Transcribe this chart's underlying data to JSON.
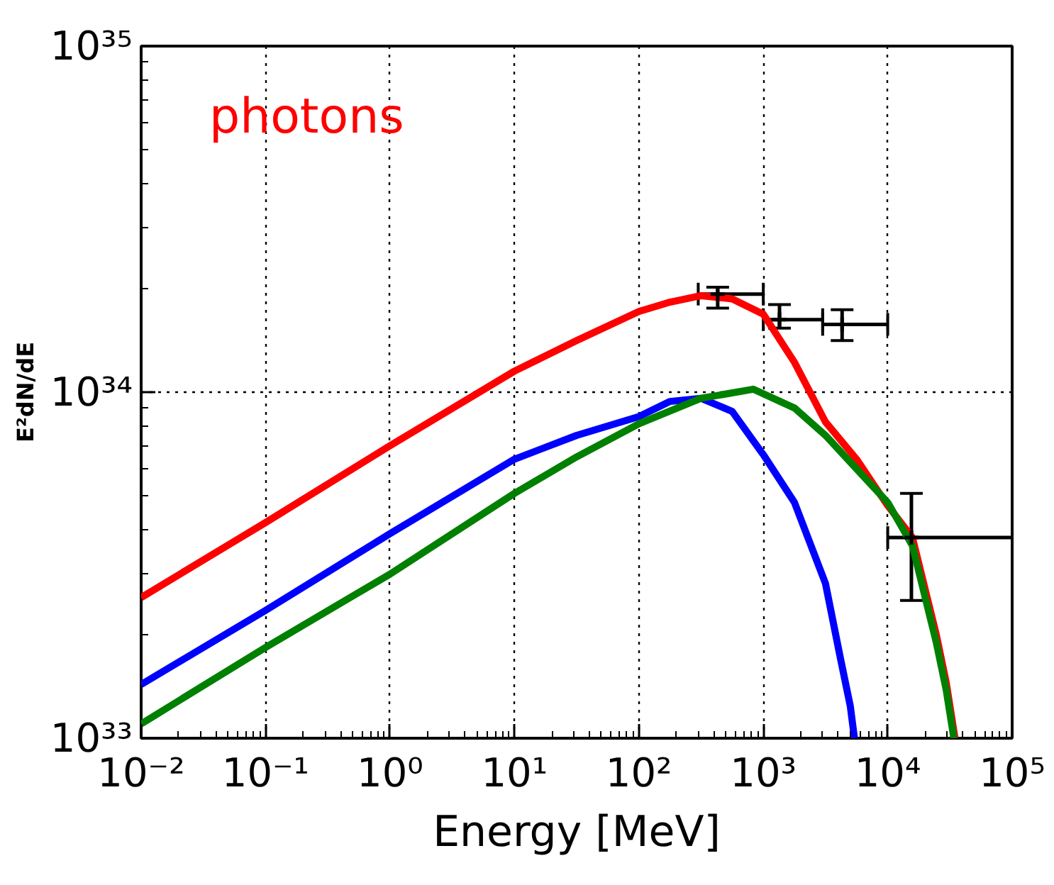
{
  "chart_data": {
    "type": "line",
    "xlabel": "Energy [MeV]",
    "ylabel": "E²dN/dE",
    "log": "xy",
    "grid": true,
    "marker": "none",
    "line_style": "solid",
    "annotations": [
      "photons"
    ],
    "xlim": [
      0.01,
      100000
    ],
    "ylim": [
      1e+33,
      1e+35
    ],
    "xticks": [
      {
        "value": 0.01,
        "label": "10⁻²"
      },
      {
        "value": 0.1,
        "label": "10⁻¹"
      },
      {
        "value": 1,
        "label": "10⁰"
      },
      {
        "value": 10,
        "label": "10¹"
      },
      {
        "value": 100,
        "label": "10²"
      },
      {
        "value": 1000,
        "label": "10³"
      },
      {
        "value": 10000,
        "label": "10⁴"
      },
      {
        "value": 100000,
        "label": "10⁵"
      }
    ],
    "yticks": [
      {
        "value": 1e+33,
        "label": "10³³"
      },
      {
        "value": 1e+34,
        "label": "10³⁴"
      },
      {
        "value": 1e+35,
        "label": "10³⁵"
      }
    ],
    "series": [
      {
        "color": "#ff0000",
        "x": [
          0.01,
          0.1,
          1,
          10,
          31.6,
          100,
          178,
          316,
          562,
          1000,
          1780,
          3160,
          5620,
          10000,
          15800,
          24500,
          29500,
          34700
        ],
        "values": [
          2.55e+33,
          4.2e+33,
          7e+33,
          1.15e+34,
          1.41e+34,
          1.71e+34,
          1.82e+34,
          1.9e+34,
          1.86e+34,
          1.68e+34,
          1.22e+34,
          8.2e+33,
          6.4e+33,
          4.7e+33,
          3.8e+33,
          2e+33,
          1.45e+33,
          1e+33
        ]
      },
      {
        "color": "#0000ff",
        "x": [
          0.01,
          0.1,
          1,
          10,
          31.6,
          100,
          178,
          316,
          562,
          1000,
          1780,
          3160,
          4170,
          5000,
          5400
        ],
        "values": [
          1.43e+33,
          2.34e+33,
          3.9e+33,
          6.4e+33,
          7.5e+33,
          8.5e+33,
          9.4e+33,
          9.6e+33,
          8.8e+33,
          6.6e+33,
          4.8e+33,
          2.8e+33,
          1.7e+33,
          1.24e+33,
          1e+33
        ]
      },
      {
        "color": "#008000",
        "x": [
          0.01,
          0.1,
          1,
          10,
          31.6,
          100,
          316,
          830,
          1780,
          3160,
          5620,
          10000,
          15800,
          24500,
          29500,
          34000
        ],
        "values": [
          1.1e+33,
          1.83e+33,
          2.98e+33,
          5.1e+33,
          6.5e+33,
          8.1e+33,
          9.6e+33,
          1.02e+34,
          9e+33,
          7.5e+33,
          6e+33,
          4.8e+33,
          3.6e+33,
          1.9e+33,
          1.38e+33,
          1e+33
        ]
      },
      {
        "type": "scatter",
        "marker": "cross",
        "color": "#000000",
        "x": [
          430,
          1350,
          4300,
          15500
        ],
        "values": [
          1.92e+34,
          1.62e+34,
          1.57e+34,
          3.8e+33
        ],
        "errors": [
          [
            1.75e+34,
            2.01e+34
          ],
          [
            1.53e+34,
            1.79e+34
          ],
          [
            1.41e+34,
            1.73e+34
          ],
          [
            2.5e+33,
            5.1e+33
          ]
        ],
        "xerrors": [
          [
            300,
            1000
          ],
          [
            1000,
            3000
          ],
          [
            3000,
            10000
          ],
          [
            10000,
            100000
          ]
        ]
      }
    ]
  }
}
